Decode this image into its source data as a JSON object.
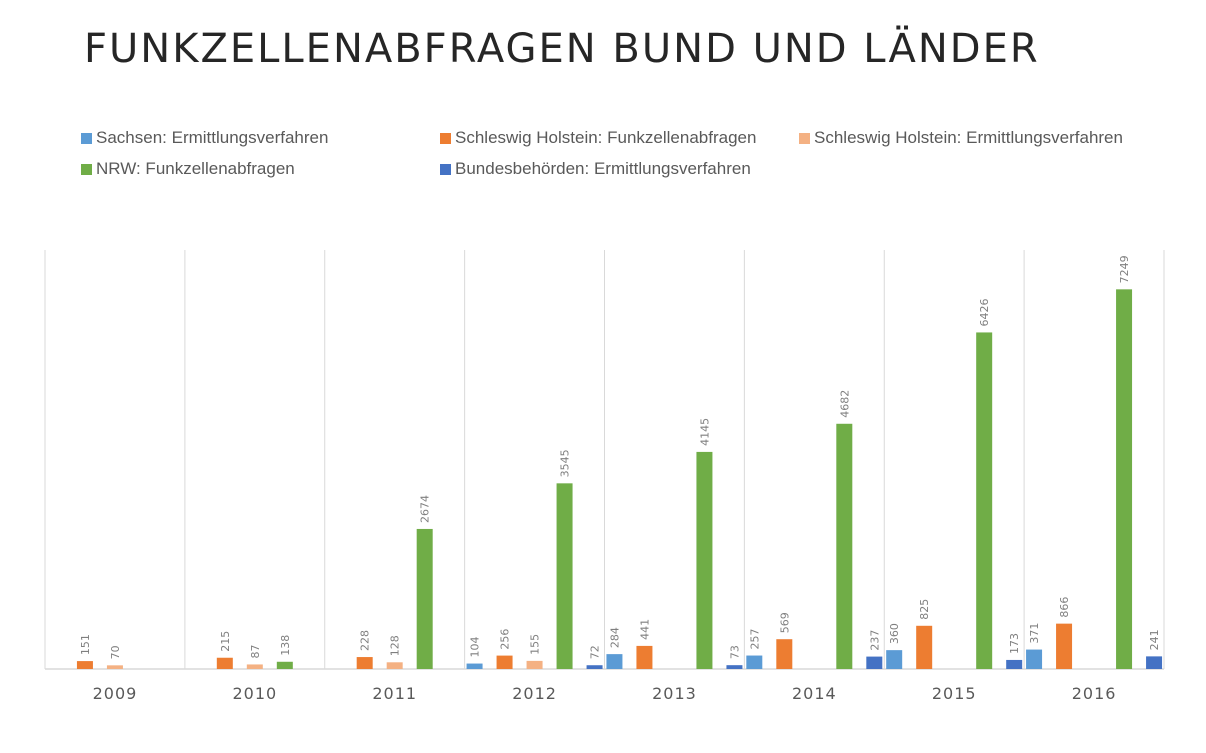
{
  "chart_data": {
    "type": "bar",
    "title": "FUNKZELLENABFRAGEN BUND UND LÄNDER",
    "xlabel": "",
    "ylabel": "",
    "ylim": [
      0,
      8000
    ],
    "grid": "vertical category separators",
    "legend_position": "top",
    "categories": [
      "2009",
      "2010",
      "2011",
      "2012",
      "2013",
      "2014",
      "2015",
      "2016"
    ],
    "series": [
      {
        "name": "Sachsen: Ermittlungsverfahren",
        "color": "#5B9BD5",
        "values": [
          null,
          null,
          null,
          104,
          284,
          257,
          360,
          371
        ]
      },
      {
        "name": "Schleswig Holstein: Funkzellenabfragen",
        "color": "#ED7D31",
        "values": [
          151,
          215,
          228,
          256,
          441,
          569,
          825,
          866
        ]
      },
      {
        "name": "Schleswig Holstein: Ermittlungsverfahren",
        "color": "#F4B183",
        "values": [
          70,
          87,
          128,
          155,
          null,
          null,
          null,
          null
        ]
      },
      {
        "name": "NRW: Funkzellenabfragen",
        "color": "#70AD47",
        "values": [
          null,
          138,
          2674,
          3545,
          4145,
          4682,
          6426,
          7249
        ]
      },
      {
        "name": "Bundesbehörden: Ermittlungsverfahren",
        "color": "#4472C4",
        "values": [
          null,
          null,
          null,
          72,
          73,
          237,
          173,
          241
        ]
      }
    ]
  }
}
